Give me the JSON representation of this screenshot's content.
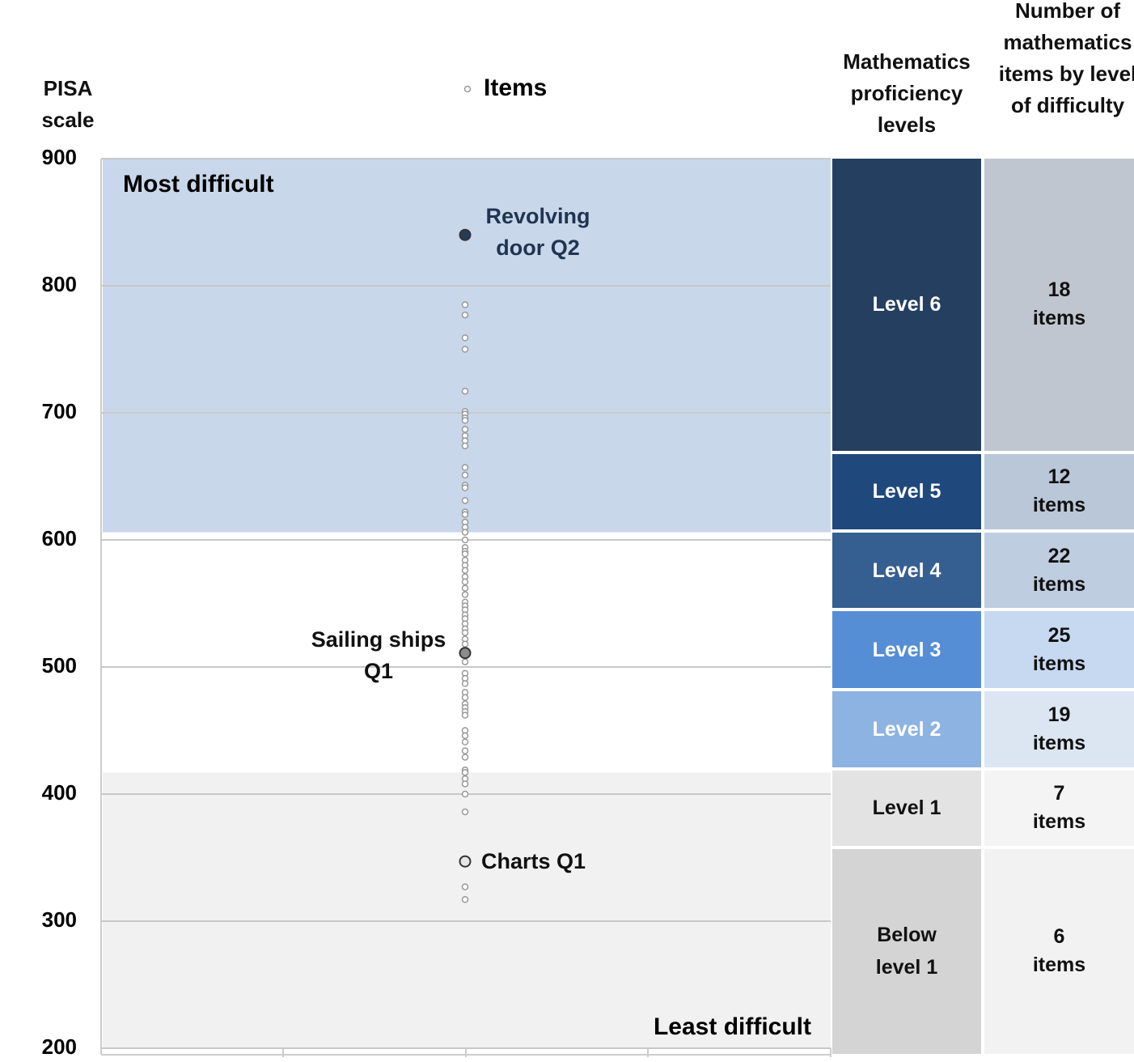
{
  "chart_data": {
    "type": "scatter",
    "y_title": "PISA scale",
    "legend": "Items",
    "levels_header": "Mathematics proficiency levels",
    "counts_header": "Number of mathematics items by level of difficulty",
    "ylim": [
      200,
      900
    ],
    "yticks": [
      200,
      300,
      400,
      500,
      600,
      700,
      800,
      900
    ],
    "grid": true,
    "bands": [
      {
        "label": "Most difficult",
        "from": 606,
        "to": 900,
        "color": "#c9d7ea"
      },
      {
        "label": "Least difficult",
        "from": 200,
        "to": 417,
        "color": "#f1f1f1"
      }
    ],
    "items": [
      785,
      777,
      759,
      750,
      717,
      701,
      699,
      696,
      694,
      687,
      682,
      678,
      674,
      657,
      651,
      643,
      641,
      631,
      622,
      620,
      614,
      610,
      606,
      600,
      594,
      591,
      589,
      584,
      580,
      576,
      571,
      567,
      562,
      557,
      551,
      548,
      545,
      541,
      538,
      534,
      530,
      527,
      522,
      518,
      504,
      495,
      491,
      487,
      480,
      476,
      471,
      468,
      465,
      462,
      450,
      446,
      441,
      434,
      429,
      419,
      417,
      412,
      408,
      400,
      386,
      327,
      317
    ],
    "highlighted": [
      {
        "label": "Revolving door Q2",
        "value": 840,
        "color": "#243b5a"
      },
      {
        "label": "Sailing ships Q1",
        "value": 511,
        "color": "#8c8c8c"
      },
      {
        "label": "Charts Q1",
        "value": 347,
        "color": "#e6e6e6"
      }
    ],
    "levels": [
      {
        "name": "Level 6",
        "lower": 669,
        "upper": 900,
        "color": "#253f60",
        "count": "18 items",
        "count_color": "#bfc6cf"
      },
      {
        "name": "Level 5",
        "lower": 607,
        "upper": 669,
        "color": "#1f497d",
        "count": "12 items",
        "count_color": "#b9c7d9"
      },
      {
        "name": "Level 4",
        "lower": 545,
        "upper": 607,
        "color": "#365f91",
        "count": "22 items",
        "count_color": "#bfcde0"
      },
      {
        "name": "Level 3",
        "lower": 482,
        "upper": 545,
        "color": "#558ed5",
        "count": "25 items",
        "count_color": "#c6d9f1"
      },
      {
        "name": "Level 2",
        "lower": 420,
        "upper": 482,
        "color": "#8db3e2",
        "count": "19 items",
        "count_color": "#dce6f2"
      },
      {
        "name": "Level 1",
        "lower": 358,
        "upper": 420,
        "color": "#e3e3e3",
        "count": "7 items",
        "count_color": "#f4f4f4"
      },
      {
        "name": "Below level 1",
        "lower": 200,
        "upper": 358,
        "color": "#d4d4d4",
        "count": "6 items",
        "count_color": "#f2f2f2"
      }
    ]
  }
}
